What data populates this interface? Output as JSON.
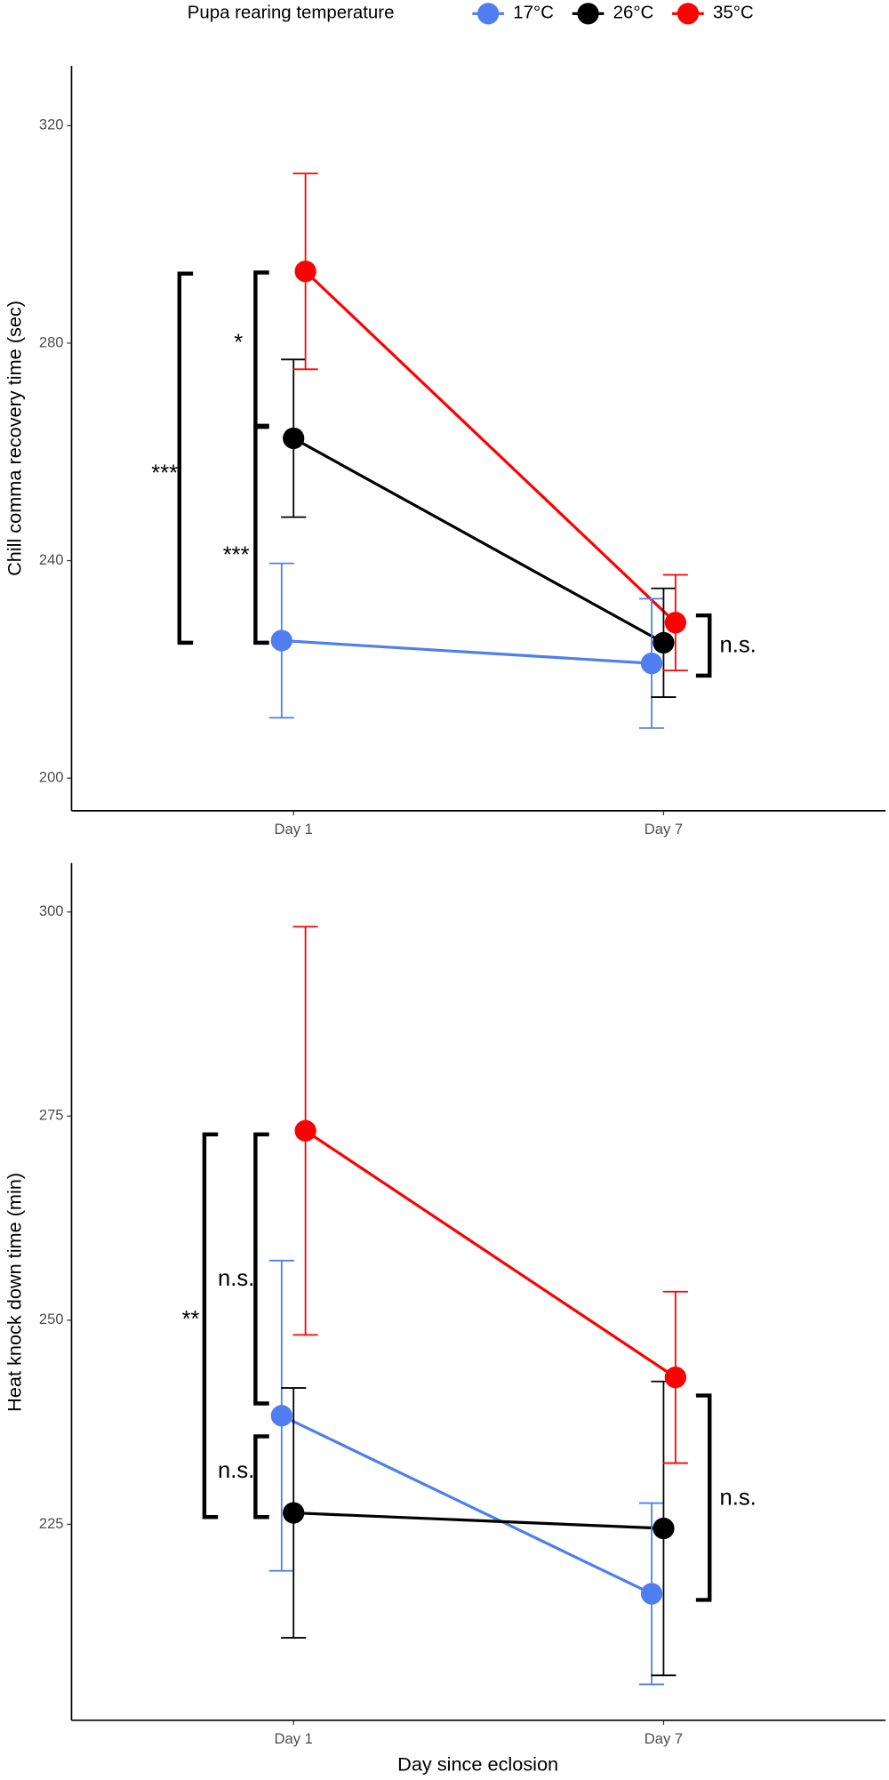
{
  "chart_data": [
    {
      "type": "line",
      "legend_title": "Pupa rearing temperature",
      "ylabel": "Chill comma recovery time (sec)",
      "categories": [
        "Day 1",
        "Day 7"
      ],
      "series": [
        {
          "name": "17°C",
          "color": "#4f7ef0",
          "values": [
            225.3,
            221.1
          ],
          "errors": [
            14.2,
            11.9
          ]
        },
        {
          "name": "26°C",
          "color": "#000000",
          "values": [
            262.5,
            224.9
          ],
          "errors": [
            14.5,
            10.0
          ]
        },
        {
          "name": "35°C",
          "color": "#ff0000",
          "values": [
            293.2,
            228.6
          ],
          "errors": [
            18.0,
            8.8
          ]
        }
      ],
      "ylim": [
        194,
        331
      ],
      "yticks": [
        200,
        240,
        280,
        320
      ],
      "annotations": [
        "***",
        "*",
        "***",
        "n.s."
      ]
    },
    {
      "type": "line",
      "ylabel": "Heat knock down time (min)",
      "xlabel": "Day since eclosion",
      "categories": [
        "Day 1",
        "Day 7"
      ],
      "series": [
        {
          "name": "17°C",
          "color": "#4f7ef0",
          "values": [
            238.3,
            216.5
          ],
          "errors": [
            19.0,
            11.1
          ]
        },
        {
          "name": "26°C",
          "color": "#000000",
          "values": [
            226.4,
            224.5
          ],
          "errors": [
            15.3,
            18.0
          ]
        },
        {
          "name": "35°C",
          "color": "#ff0000",
          "values": [
            273.2,
            243.0
          ],
          "errors": [
            25.0,
            10.5
          ]
        }
      ],
      "ylim": [
        201,
        306
      ],
      "yticks": [
        225,
        250,
        275,
        300
      ],
      "annotations": [
        "**",
        "n.s.",
        "n.s.",
        "n.s."
      ]
    }
  ]
}
